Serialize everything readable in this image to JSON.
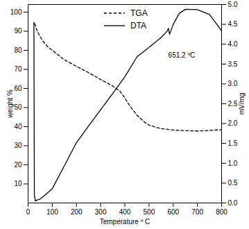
{
  "chart_data": {
    "type": "line",
    "x_label": "Temperature º C",
    "y_label": "weight %",
    "y2_label": "mV/mg",
    "xlim": [
      0,
      800
    ],
    "xticks": [
      0,
      100,
      200,
      300,
      400,
      500,
      600,
      700,
      800
    ],
    "ylim": [
      0,
      104
    ],
    "yticks": [
      10,
      20,
      30,
      40,
      50,
      60,
      70,
      80,
      90,
      100
    ],
    "y2lim": [
      0,
      5
    ],
    "y2ticks": [
      {
        "value": 0,
        "label": "0.0"
      },
      0.5,
      {
        "value": 1,
        "label": "1.0"
      },
      1.5,
      {
        "value": 2,
        "label": "2.0"
      },
      2.5,
      {
        "value": 3,
        "label": "3.0"
      },
      3.5,
      {
        "value": 4,
        "label": "4.0"
      },
      4.5,
      {
        "value": 5,
        "label": "5.0"
      }
    ],
    "legend": "top",
    "series": [
      {
        "name": "TGA",
        "color": "#000000",
        "line_style": "dashed",
        "x": [
          28,
          35,
          43,
          60,
          80,
          100,
          120,
          150,
          200,
          250,
          300,
          350,
          380,
          400,
          420,
          450,
          480,
          500,
          530,
          550,
          600,
          650,
          700,
          750,
          800
        ],
        "values": [
          94,
          91,
          88.7,
          85,
          82,
          80,
          78,
          75,
          71.6,
          68.3,
          64.7,
          61.3,
          58.5,
          55,
          51,
          46,
          42.5,
          40.8,
          39.6,
          39,
          38.2,
          37.9,
          37.7,
          38,
          38.4
        ]
      },
      {
        "name": "DTA",
        "color": "#000000",
        "line_style": "solid",
        "axis": "y2",
        "x": [
          24,
          26,
          30,
          40,
          50,
          70,
          100,
          150,
          200,
          250,
          300,
          350,
          400,
          450,
          500,
          550,
          575,
          580,
          585,
          600,
          625,
          651.2,
          700,
          750,
          800
        ],
        "values": [
          4.55,
          0.2,
          0.05,
          0.08,
          0.1,
          0.2,
          0.36,
          0.94,
          1.52,
          1.94,
          2.35,
          2.76,
          3.18,
          3.68,
          3.92,
          4.17,
          4.33,
          4.4,
          4.25,
          4.5,
          4.78,
          4.88,
          4.87,
          4.75,
          4.34
        ]
      }
    ],
    "annotations": [
      {
        "text": "651.2 ºC",
        "x": 635,
        "y": 3.72
      }
    ]
  }
}
